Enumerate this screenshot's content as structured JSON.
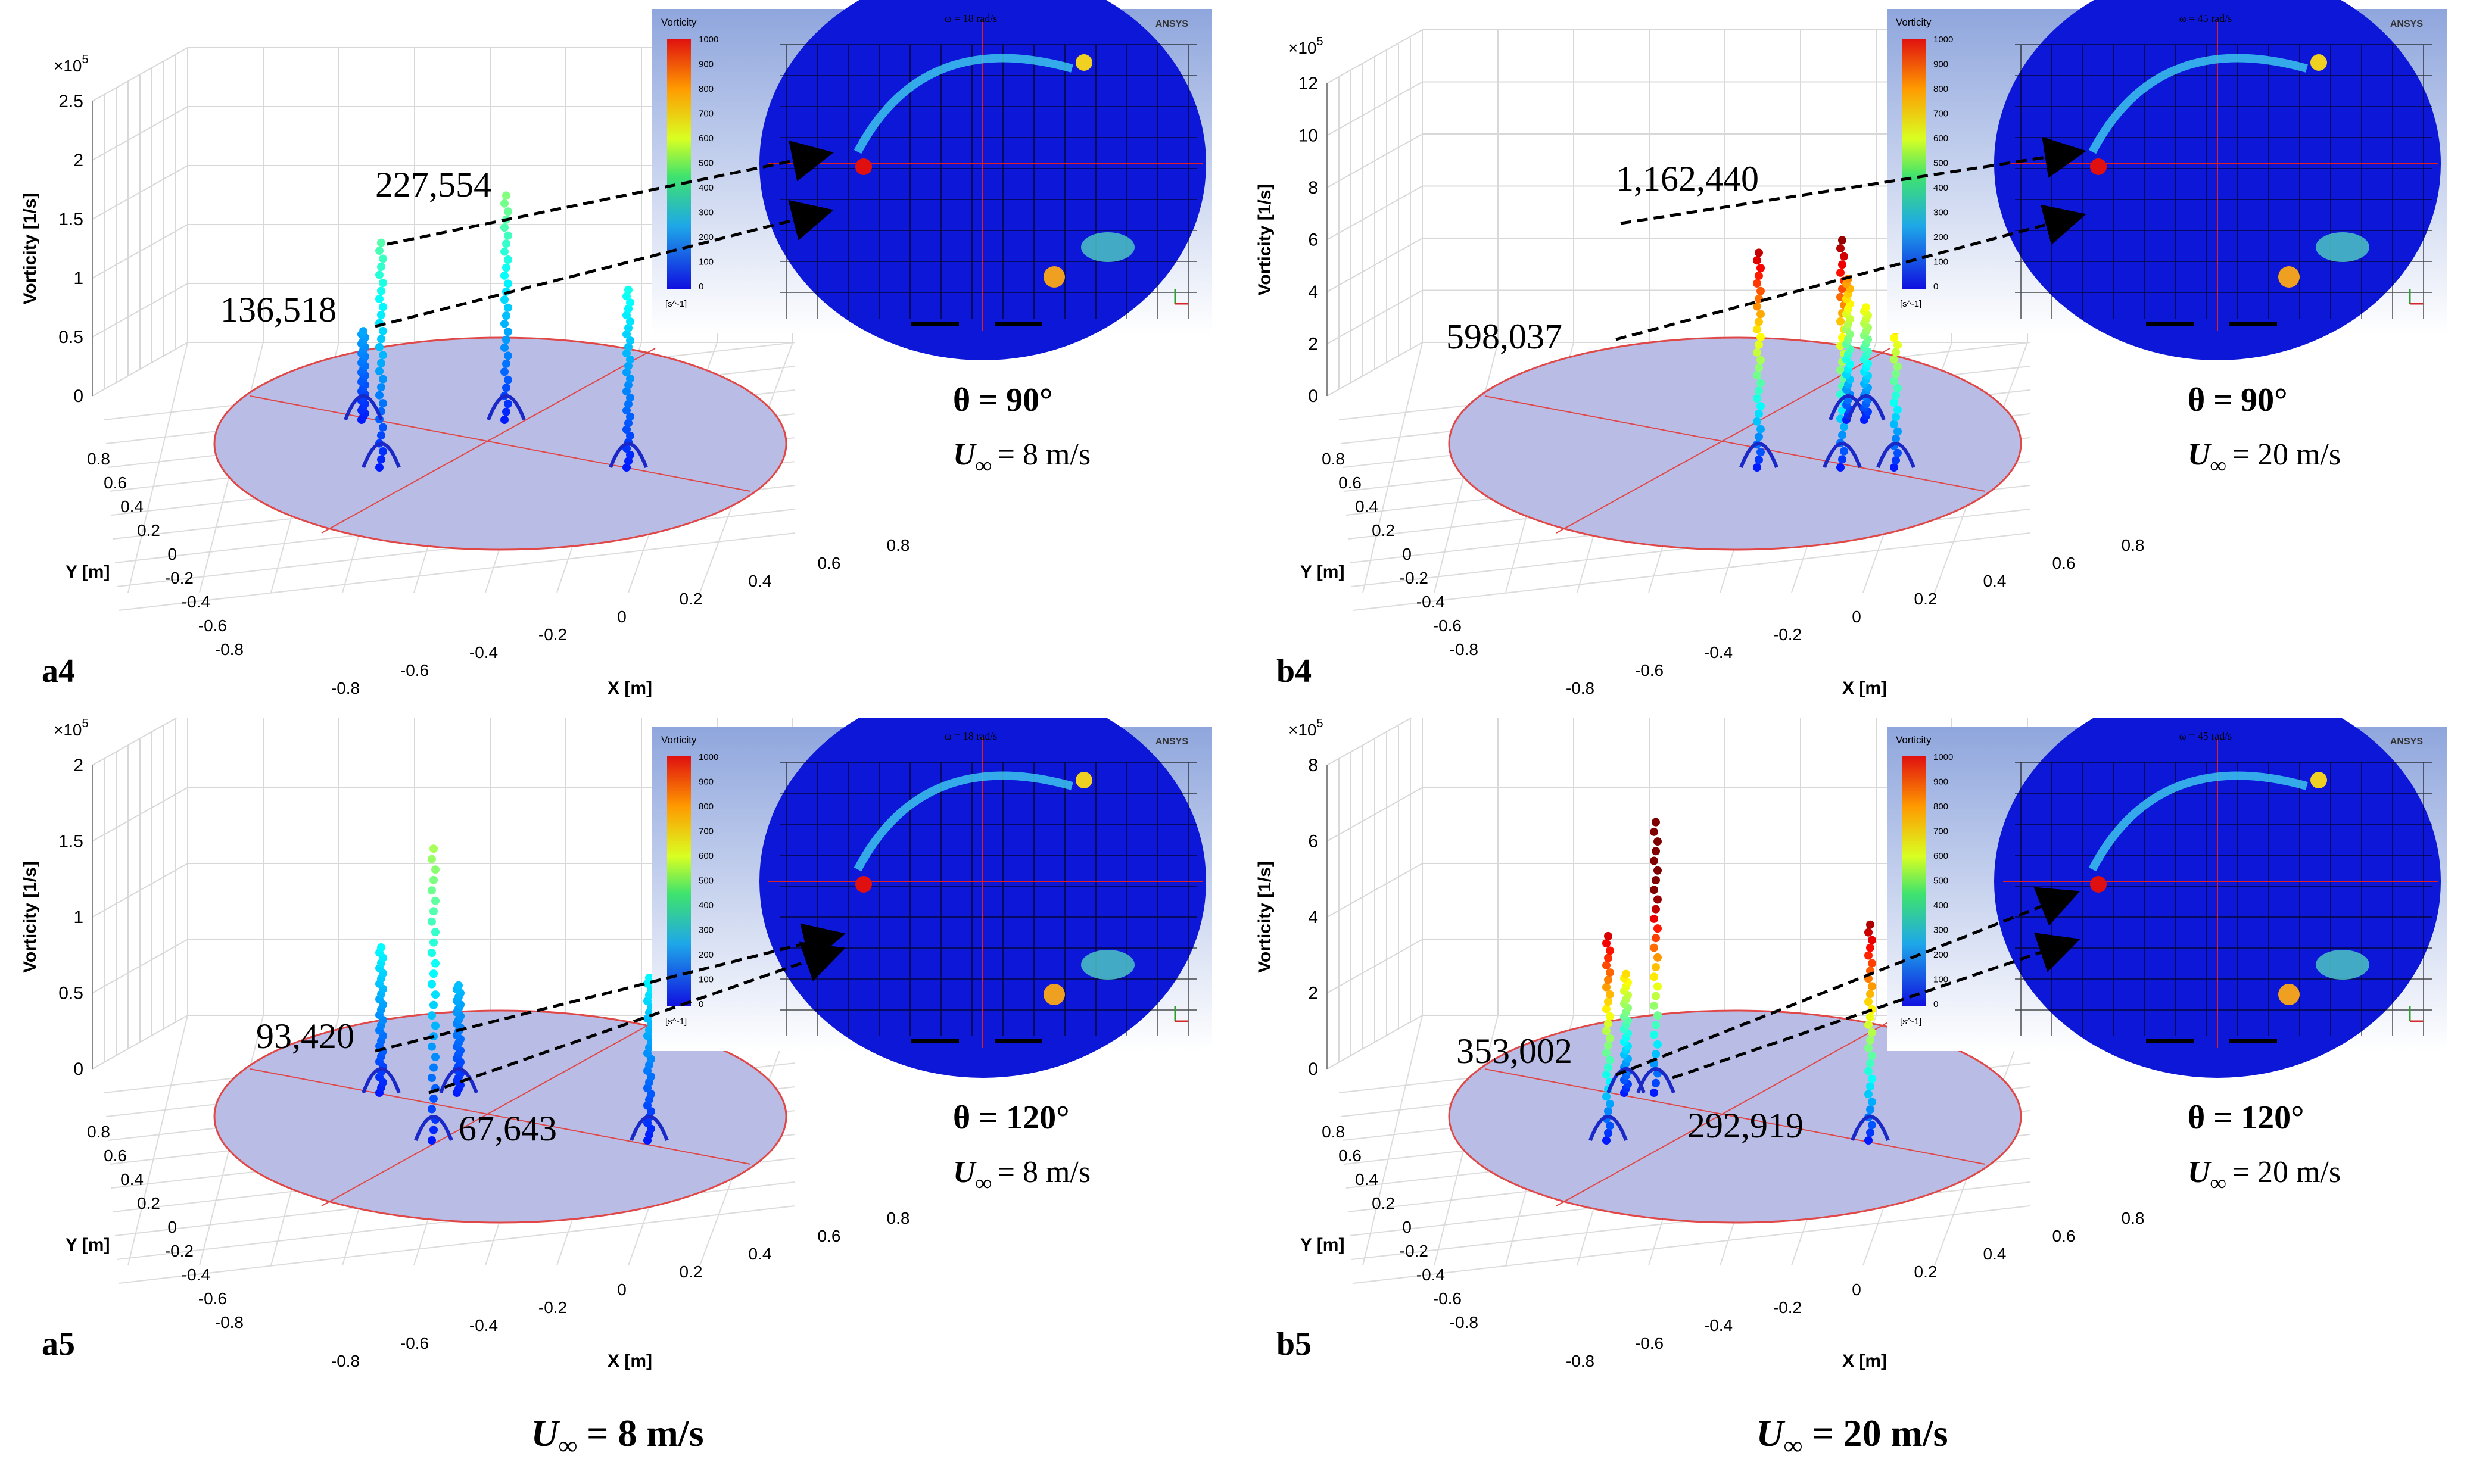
{
  "figure": {
    "captions": [
      "U",
      "U"
    ],
    "caption_sub": "∞",
    "caption_values": [
      "= 8 m/s",
      "= 20 m/s"
    ]
  },
  "chart_data": [
    {
      "type": "scatter",
      "panel_label": "a4",
      "z_label": "Vorticity  [1/s]",
      "x_label": "X [m]",
      "y_label": "Y [m]",
      "z_exponent": "×10",
      "z_exp_power": "5",
      "z_ticks": [
        "0",
        "0.5",
        "1",
        "1.5",
        "2",
        "2.5"
      ],
      "z_range": [
        0,
        2.5
      ],
      "x_ticks": [
        "-0.8",
        "-0.6",
        "-0.4",
        "-0.2",
        "0",
        "0.2",
        "0.4",
        "0.6",
        "0.8"
      ],
      "y_ticks": [
        "0.8",
        "0.6",
        "0.4",
        "0.2",
        "0",
        "-0.2",
        "-0.4",
        "-0.6",
        "-0.8"
      ],
      "annotations": [
        "227,554",
        "136,518"
      ],
      "peaks": [
        2.27554,
        1.36518
      ],
      "theta_label": "θ = 90°",
      "u_label": "U",
      "u_sub": "∞",
      "u_value": "= 8 m/s",
      "inset": {
        "legend_title": "Vorticity",
        "legend_ticks": [
          "1000",
          "900",
          "800",
          "700",
          "600",
          "500",
          "400",
          "300",
          "200",
          "100",
          "0"
        ],
        "legend_unit": "[s^-1]",
        "omega_label": "ω = 18 rad/s",
        "brand": "ANSYS"
      }
    },
    {
      "type": "scatter",
      "panel_label": "b4",
      "z_label": "Vorticity  [1/s]",
      "x_label": "X [m]",
      "y_label": "Y [m]",
      "z_exponent": "×10",
      "z_exp_power": "5",
      "z_ticks": [
        "0",
        "2",
        "4",
        "6",
        "8",
        "10",
        "12"
      ],
      "z_range": [
        0,
        12
      ],
      "x_ticks": [
        "-0.8",
        "-0.6",
        "-0.4",
        "-0.2",
        "0",
        "0.2",
        "0.4",
        "0.6",
        "0.8"
      ],
      "y_ticks": [
        "0.8",
        "0.6",
        "0.4",
        "0.2",
        "0",
        "-0.2",
        "-0.4",
        "-0.6",
        "-0.8"
      ],
      "annotations": [
        "1,162,440",
        "598,037"
      ],
      "peaks": [
        11.6244,
        5.98037
      ],
      "theta_label": "θ = 90°",
      "u_label": "U",
      "u_sub": "∞",
      "u_value": "= 20 m/s",
      "inset": {
        "legend_title": "Vorticity",
        "legend_ticks": [
          "1000",
          "900",
          "800",
          "700",
          "600",
          "500",
          "400",
          "300",
          "200",
          "100",
          "0"
        ],
        "legend_unit": "[s^-1]",
        "omega_label": "ω = 45 rad/s",
        "brand": "ANSYS"
      }
    },
    {
      "type": "scatter",
      "panel_label": "a5",
      "z_label": "Vorticity  [1/s]",
      "x_label": "X [m]",
      "y_label": "Y [m]",
      "z_exponent": "×10",
      "z_exp_power": "5",
      "z_ticks": [
        "0",
        "0.5",
        "1",
        "1.5",
        "2"
      ],
      "z_range": [
        0,
        2
      ],
      "x_ticks": [
        "-0.8",
        "-0.6",
        "-0.4",
        "-0.2",
        "0",
        "0.2",
        "0.4",
        "0.6",
        "0.8"
      ],
      "y_ticks": [
        "0.8",
        "0.6",
        "0.4",
        "0.2",
        "0",
        "-0.2",
        "-0.4",
        "-0.6",
        "-0.8"
      ],
      "annotations": [
        "93,420",
        "67,643"
      ],
      "peaks": [
        0.9342,
        0.67643
      ],
      "theta_label": "θ = 120°",
      "u_label": "U",
      "u_sub": "∞",
      "u_value": "= 8 m/s",
      "inset": {
        "legend_title": "Vorticity",
        "legend_ticks": [
          "1000",
          "900",
          "800",
          "700",
          "600",
          "500",
          "400",
          "300",
          "200",
          "100",
          "0"
        ],
        "legend_unit": "[s^-1]",
        "omega_label": "ω = 18 rad/s",
        "brand": "ANSYS"
      }
    },
    {
      "type": "scatter",
      "panel_label": "b5",
      "z_label": "Vorticity  [1/s]",
      "x_label": "X [m]",
      "y_label": "Y [m]",
      "z_exponent": "×10",
      "z_exp_power": "5",
      "z_ticks": [
        "0",
        "2",
        "4",
        "6",
        "8"
      ],
      "z_range": [
        0,
        8
      ],
      "x_ticks": [
        "-0.8",
        "-0.6",
        "-0.4",
        "-0.2",
        "0",
        "0.2",
        "0.4",
        "0.6",
        "0.8"
      ],
      "y_ticks": [
        "0.8",
        "0.6",
        "0.4",
        "0.2",
        "0",
        "-0.2",
        "-0.4",
        "-0.6",
        "-0.8"
      ],
      "annotations": [
        "353,002",
        "292,919"
      ],
      "peaks": [
        3.53002,
        2.92919
      ],
      "theta_label": "θ = 120°",
      "u_label": "U",
      "u_sub": "∞",
      "u_value": "= 20 m/s",
      "inset": {
        "legend_title": "Vorticity",
        "legend_ticks": [
          "1000",
          "900",
          "800",
          "700",
          "600",
          "500",
          "400",
          "300",
          "200",
          "100",
          "0"
        ],
        "legend_unit": "[s^-1]",
        "omega_label": "ω = 45 rad/s",
        "brand": "ANSYS"
      }
    }
  ]
}
